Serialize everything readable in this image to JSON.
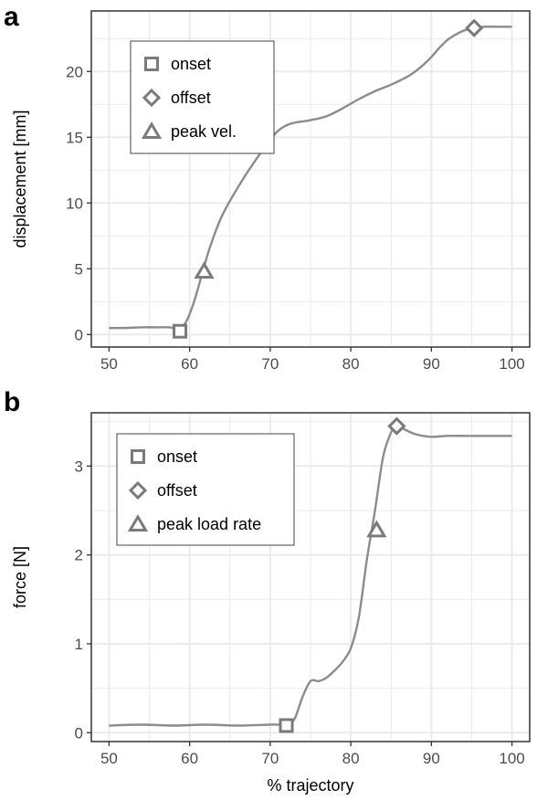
{
  "colors": {
    "line": "#8c8c8c",
    "marker": "#7a7a7a",
    "grid": "#ebebeb",
    "frame": "#333333"
  },
  "chart_data": [
    {
      "panel": "a",
      "type": "line",
      "xlabel": "",
      "ylabel": "displacement [mm]",
      "xlim": [
        47.8,
        102.2
      ],
      "ylim": [
        -0.95,
        24.6
      ],
      "xticks": [
        50,
        60,
        70,
        80,
        90,
        100
      ],
      "yticks": [
        0,
        5,
        10,
        15,
        20
      ],
      "grid": true,
      "legend_position": "top-left",
      "series": [
        {
          "x": [
            50,
            52,
            54,
            56,
            57.5,
            58.5,
            59.5,
            60.5,
            61.5,
            62.5,
            64,
            66,
            68,
            70,
            71,
            72,
            73,
            75,
            77,
            79,
            81,
            83,
            85,
            87,
            88,
            89,
            90,
            91,
            92,
            93,
            94,
            95.2,
            96.5,
            98,
            100
          ],
          "y": [
            0.5,
            0.5,
            0.55,
            0.55,
            0.55,
            0.45,
            0.9,
            2.4,
            4.5,
            6.6,
            9.0,
            11.2,
            13.1,
            14.8,
            15.5,
            15.9,
            16.1,
            16.3,
            16.6,
            17.2,
            17.9,
            18.5,
            19.0,
            19.6,
            20.0,
            20.5,
            21.1,
            21.8,
            22.4,
            22.8,
            23.1,
            23.3,
            23.4,
            23.4,
            23.4
          ]
        }
      ],
      "markers": [
        {
          "label": "onset",
          "shape": "square",
          "x": 58.8,
          "y": 0.25
        },
        {
          "label": "peak vel.",
          "shape": "triangle",
          "x": 61.8,
          "y": 4.8
        },
        {
          "label": "offset",
          "shape": "diamond",
          "x": 95.3,
          "y": 23.3
        }
      ],
      "legend": [
        "onset",
        "offset",
        "peak vel."
      ],
      "xtick_labels": [
        "50",
        "60",
        "70",
        "80",
        "90",
        "100"
      ],
      "ytick_labels": [
        "0",
        "5",
        "10",
        "15",
        "20"
      ]
    },
    {
      "panel": "b",
      "type": "line",
      "xlabel": "% trajectory",
      "ylabel": "force [N]",
      "xlim": [
        47.8,
        102.2
      ],
      "ylim": [
        -0.1,
        3.6
      ],
      "xticks": [
        50,
        60,
        70,
        80,
        90,
        100
      ],
      "yticks": [
        0,
        1,
        2,
        3
      ],
      "grid": true,
      "legend_position": "top-left",
      "series": [
        {
          "x": [
            50,
            54,
            58,
            62,
            66,
            70,
            71,
            72,
            73,
            74,
            75,
            76,
            77,
            78,
            79,
            80,
            81,
            82,
            83,
            84,
            85,
            85.7,
            86.5,
            88,
            90,
            92,
            95,
            100
          ],
          "y": [
            0.08,
            0.09,
            0.08,
            0.09,
            0.08,
            0.09,
            0.09,
            0.08,
            0.15,
            0.4,
            0.58,
            0.58,
            0.62,
            0.7,
            0.8,
            0.95,
            1.3,
            1.95,
            2.5,
            3.1,
            3.38,
            3.45,
            3.42,
            3.36,
            3.33,
            3.34,
            3.34,
            3.34
          ]
        }
      ],
      "markers": [
        {
          "label": "onset",
          "shape": "square",
          "x": 72.0,
          "y": 0.08
        },
        {
          "label": "peak load rate",
          "shape": "triangle",
          "x": 83.2,
          "y": 2.28
        },
        {
          "label": "offset",
          "shape": "diamond",
          "x": 85.7,
          "y": 3.45
        }
      ],
      "legend": [
        "onset",
        "offset",
        "peak load rate"
      ],
      "xtick_labels": [
        "50",
        "60",
        "70",
        "80",
        "90",
        "100"
      ],
      "ytick_labels": [
        "0",
        "1",
        "2",
        "3"
      ]
    }
  ]
}
